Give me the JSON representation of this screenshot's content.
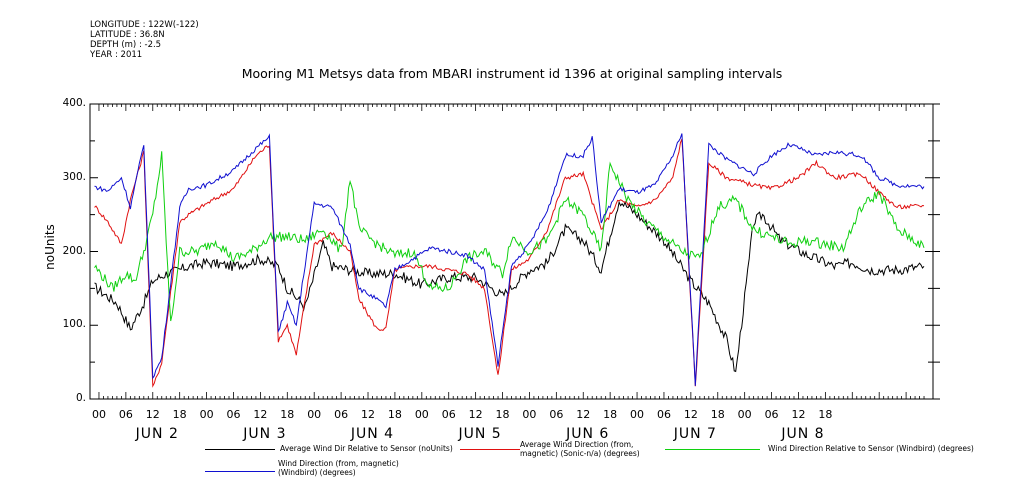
{
  "meta": {
    "lines": [
      "LONGITUDE : 122W(-122)",
      "LATITUDE : 36.8N",
      "DEPTH (m) : -2.5",
      "YEAR : 2011"
    ]
  },
  "chart_data": {
    "type": "line",
    "title": "Mooring M1 Metsys data from MBARI instrument id 1396 at original sampling intervals",
    "ylabel": "noUnits",
    "ylim": [
      0,
      400
    ],
    "yticks": [
      "0.",
      "100.",
      "200.",
      "300.",
      "400."
    ],
    "hour_ticks": [
      "00",
      "06",
      "12",
      "18",
      "00",
      "06",
      "12",
      "18",
      "00",
      "06",
      "12",
      "18",
      "00",
      "06",
      "12",
      "18",
      "00",
      "06",
      "12",
      "18",
      "00",
      "06",
      "12",
      "18",
      "00",
      "06",
      "12",
      "18"
    ],
    "day_labels": [
      "JUN  2",
      "JUN  3",
      "JUN  4",
      "JUN  5",
      "JUN  6",
      "JUN  7",
      "JUN  8"
    ],
    "series": [
      {
        "name": "Average Wind Dir Relative to Sensor (noUnits)",
        "color": "#000000",
        "values": [
          [
            -1,
            152
          ],
          [
            4,
            130
          ],
          [
            7,
            95
          ],
          [
            10,
            130
          ],
          [
            12,
            160
          ],
          [
            15,
            170
          ],
          [
            18,
            175
          ],
          [
            20,
            180
          ],
          [
            24,
            185
          ],
          [
            30,
            180
          ],
          [
            36,
            190
          ],
          [
            40,
            180
          ],
          [
            42,
            150
          ],
          [
            46,
            125
          ],
          [
            50,
            210
          ],
          [
            52,
            180
          ],
          [
            56,
            175
          ],
          [
            60,
            170
          ],
          [
            66,
            170
          ],
          [
            72,
            155
          ],
          [
            78,
            165
          ],
          [
            84,
            165
          ],
          [
            90,
            140
          ],
          [
            96,
            175
          ],
          [
            100,
            185
          ],
          [
            104,
            230
          ],
          [
            108,
            215
          ],
          [
            112,
            175
          ],
          [
            116,
            270
          ],
          [
            120,
            250
          ],
          [
            126,
            215
          ],
          [
            132,
            160
          ],
          [
            136,
            130
          ],
          [
            140,
            80
          ],
          [
            142,
            35
          ],
          [
            146,
            240
          ],
          [
            148,
            250
          ],
          [
            152,
            215
          ],
          [
            158,
            195
          ],
          [
            164,
            180
          ],
          [
            168,
            185
          ],
          [
            172,
            175
          ],
          [
            178,
            175
          ],
          [
            184,
            180
          ]
        ]
      },
      {
        "name": "Average Wind Direction (from, magnetic) (Sonic-n/a) (degrees)",
        "color": "#e01010",
        "values": [
          [
            -1,
            262
          ],
          [
            2,
            240
          ],
          [
            5,
            210
          ],
          [
            7,
            270
          ],
          [
            10,
            335
          ],
          [
            12,
            15
          ],
          [
            14,
            50
          ],
          [
            18,
            240
          ],
          [
            20,
            250
          ],
          [
            24,
            265
          ],
          [
            30,
            285
          ],
          [
            35,
            330
          ],
          [
            38,
            345
          ],
          [
            40,
            80
          ],
          [
            42,
            100
          ],
          [
            44,
            60
          ],
          [
            48,
            210
          ],
          [
            52,
            225
          ],
          [
            56,
            200
          ],
          [
            58,
            135
          ],
          [
            62,
            95
          ],
          [
            64,
            95
          ],
          [
            66,
            175
          ],
          [
            70,
            180
          ],
          [
            74,
            180
          ],
          [
            78,
            175
          ],
          [
            82,
            170
          ],
          [
            86,
            150
          ],
          [
            89,
            30
          ],
          [
            92,
            175
          ],
          [
            96,
            190
          ],
          [
            100,
            230
          ],
          [
            104,
            300
          ],
          [
            108,
            305
          ],
          [
            112,
            230
          ],
          [
            116,
            270
          ],
          [
            120,
            260
          ],
          [
            124,
            270
          ],
          [
            128,
            300
          ],
          [
            130,
            355
          ],
          [
            133,
            15
          ],
          [
            136,
            320
          ],
          [
            140,
            300
          ],
          [
            146,
            290
          ],
          [
            150,
            285
          ],
          [
            156,
            300
          ],
          [
            160,
            320
          ],
          [
            164,
            300
          ],
          [
            170,
            305
          ],
          [
            174,
            280
          ],
          [
            178,
            260
          ],
          [
            184,
            262
          ]
        ]
      },
      {
        "name": "Wind Direction Relative to Sensor (Windbird) (degrees)",
        "color": "#10d010",
        "values": [
          [
            -1,
            180
          ],
          [
            3,
            150
          ],
          [
            6,
            170
          ],
          [
            8,
            160
          ],
          [
            10,
            200
          ],
          [
            12,
            250
          ],
          [
            14,
            330
          ],
          [
            16,
            100
          ],
          [
            18,
            200
          ],
          [
            22,
            200
          ],
          [
            26,
            215
          ],
          [
            30,
            190
          ],
          [
            34,
            200
          ],
          [
            38,
            220
          ],
          [
            42,
            220
          ],
          [
            46,
            215
          ],
          [
            50,
            230
          ],
          [
            54,
            200
          ],
          [
            56,
            300
          ],
          [
            58,
            230
          ],
          [
            62,
            210
          ],
          [
            66,
            195
          ],
          [
            70,
            200
          ],
          [
            74,
            150
          ],
          [
            78,
            150
          ],
          [
            82,
            190
          ],
          [
            86,
            200
          ],
          [
            90,
            170
          ],
          [
            92,
            220
          ],
          [
            96,
            200
          ],
          [
            100,
            215
          ],
          [
            104,
            270
          ],
          [
            108,
            250
          ],
          [
            112,
            200
          ],
          [
            114,
            320
          ],
          [
            118,
            270
          ],
          [
            122,
            240
          ],
          [
            126,
            220
          ],
          [
            130,
            200
          ],
          [
            134,
            190
          ],
          [
            138,
            260
          ],
          [
            142,
            270
          ],
          [
            146,
            230
          ],
          [
            150,
            220
          ],
          [
            154,
            210
          ],
          [
            158,
            215
          ],
          [
            162,
            210
          ],
          [
            166,
            205
          ],
          [
            170,
            260
          ],
          [
            174,
            280
          ],
          [
            178,
            230
          ],
          [
            182,
            215
          ],
          [
            184,
            205
          ]
        ]
      },
      {
        "name": "Wind Direction (from, magnetic) (Windbird) (degrees)",
        "color": "#1010d0",
        "values": [
          [
            -1,
            288
          ],
          [
            2,
            282
          ],
          [
            5,
            300
          ],
          [
            7,
            260
          ],
          [
            10,
            345
          ],
          [
            12,
            30
          ],
          [
            14,
            55
          ],
          [
            18,
            260
          ],
          [
            20,
            285
          ],
          [
            24,
            290
          ],
          [
            30,
            310
          ],
          [
            35,
            340
          ],
          [
            38,
            355
          ],
          [
            40,
            90
          ],
          [
            42,
            130
          ],
          [
            44,
            100
          ],
          [
            48,
            265
          ],
          [
            52,
            260
          ],
          [
            56,
            210
          ],
          [
            58,
            150
          ],
          [
            62,
            135
          ],
          [
            64,
            125
          ],
          [
            66,
            175
          ],
          [
            70,
            190
          ],
          [
            74,
            205
          ],
          [
            78,
            200
          ],
          [
            82,
            195
          ],
          [
            86,
            175
          ],
          [
            89,
            45
          ],
          [
            92,
            180
          ],
          [
            96,
            210
          ],
          [
            100,
            255
          ],
          [
            104,
            330
          ],
          [
            108,
            330
          ],
          [
            110,
            355
          ],
          [
            112,
            240
          ],
          [
            116,
            285
          ],
          [
            120,
            280
          ],
          [
            124,
            290
          ],
          [
            128,
            330
          ],
          [
            130,
            360
          ],
          [
            133,
            20
          ],
          [
            136,
            345
          ],
          [
            140,
            325
          ],
          [
            146,
            305
          ],
          [
            150,
            330
          ],
          [
            154,
            345
          ],
          [
            160,
            330
          ],
          [
            164,
            335
          ],
          [
            170,
            330
          ],
          [
            174,
            300
          ],
          [
            178,
            290
          ],
          [
            184,
            288
          ]
        ]
      }
    ]
  }
}
